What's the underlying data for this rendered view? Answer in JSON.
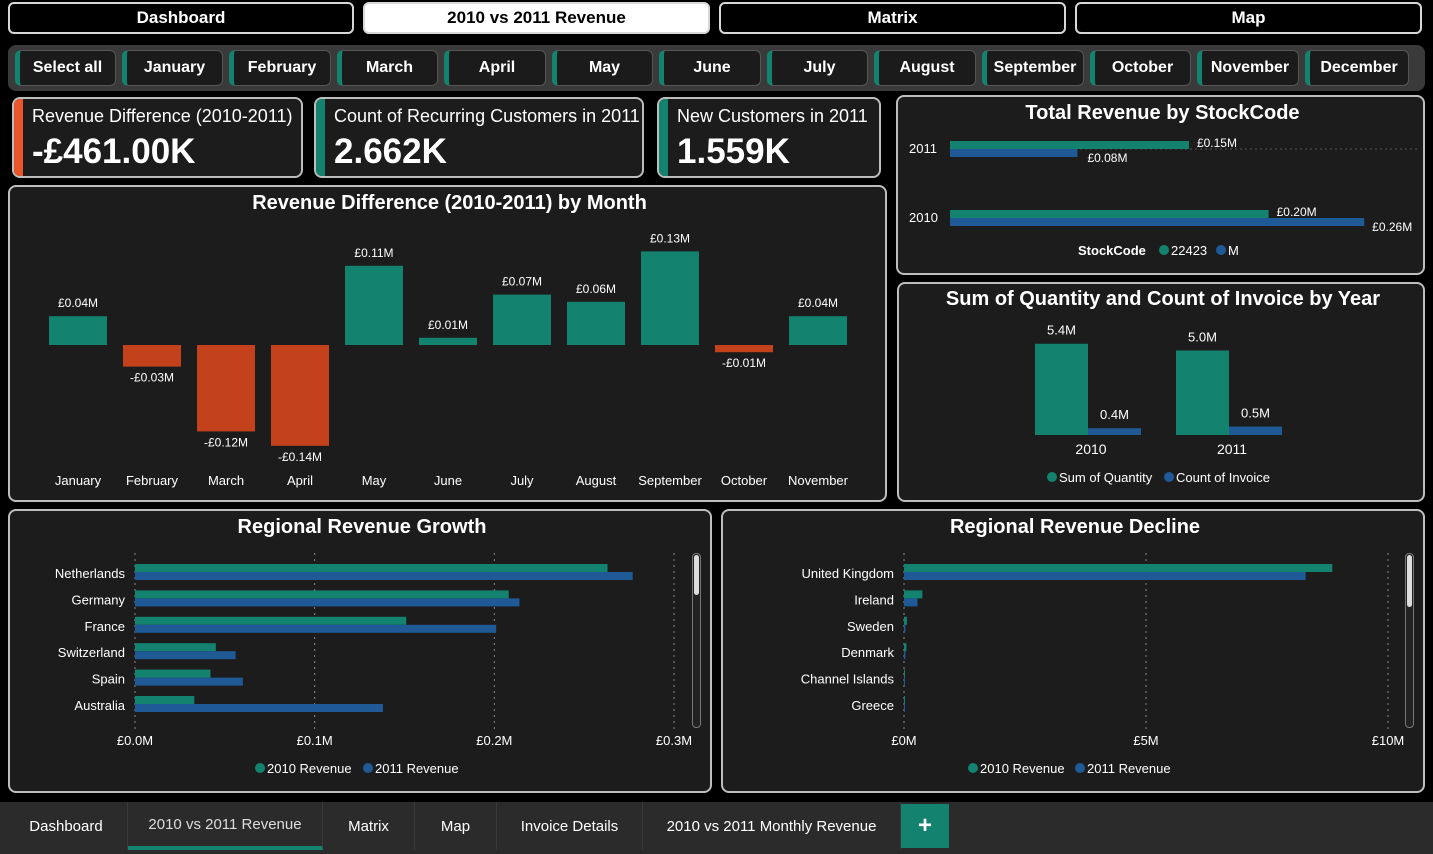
{
  "colors": {
    "teal": "#13836f",
    "blue": "#1f5a96",
    "orange": "#c4421b",
    "kpi_orange": "#e8562a"
  },
  "nav": [
    {
      "label": "Dashboard",
      "active": false
    },
    {
      "label": "2010 vs 2011 Revenue",
      "active": true
    },
    {
      "label": "Matrix",
      "active": false
    },
    {
      "label": "Map",
      "active": false
    }
  ],
  "months_filter": [
    "Select all",
    "January",
    "February",
    "March",
    "April",
    "May",
    "June",
    "July",
    "August",
    "September",
    "October",
    "November",
    "December"
  ],
  "kpis": [
    {
      "label": "Revenue Difference (2010-2011)",
      "value": "-£461.00K",
      "accent": "#e8562a"
    },
    {
      "label": "Count of Recurring Customers in 2011",
      "value": "2.662K",
      "accent": "#13836f"
    },
    {
      "label": "New Customers in 2011",
      "value": "1.559K",
      "accent": "#13836f"
    }
  ],
  "monthly_chart": {
    "title": "Revenue Difference (2010-2011) by Month",
    "chart_data": {
      "type": "bar",
      "categories": [
        "January",
        "February",
        "March",
        "April",
        "May",
        "June",
        "July",
        "August",
        "September",
        "October",
        "November"
      ],
      "values": [
        0.04,
        -0.03,
        -0.12,
        -0.14,
        0.11,
        0.01,
        0.07,
        0.06,
        0.13,
        -0.01,
        0.04
      ],
      "labels": [
        "£0.04M",
        "-£0.03M",
        "-£0.12M",
        "-£0.14M",
        "£0.11M",
        "£0.01M",
        "£0.07M",
        "£0.06M",
        "£0.13M",
        "-£0.01M",
        "£0.04M"
      ],
      "unit": "£M"
    }
  },
  "stockcode_chart": {
    "title": "Total Revenue by StockCode",
    "legend_title": "StockCode",
    "chart_data": {
      "type": "bar",
      "orientation": "horizontal",
      "categories": [
        "2011",
        "2010"
      ],
      "series": [
        {
          "name": "22423",
          "values": [
            0.15,
            0.2
          ],
          "labels": [
            "£0.15M",
            "£0.20M"
          ]
        },
        {
          "name": "M",
          "values": [
            0.08,
            0.26
          ],
          "labels": [
            "£0.08M",
            "£0.26M"
          ]
        }
      ],
      "unit": "£M"
    }
  },
  "quantity_chart": {
    "title": "Sum of Quantity and Count of Invoice by Year",
    "chart_data": {
      "type": "bar",
      "categories": [
        "2010",
        "2011"
      ],
      "series": [
        {
          "name": "Sum of Quantity",
          "values": [
            5.4,
            5.0
          ],
          "labels": [
            "5.4M",
            "5.0M"
          ]
        },
        {
          "name": "Count of Invoice",
          "values": [
            0.4,
            0.5
          ],
          "labels": [
            "0.4M",
            "0.5M"
          ]
        }
      ]
    }
  },
  "growth_chart": {
    "title": "Regional Revenue Growth",
    "chart_data": {
      "type": "bar",
      "orientation": "horizontal",
      "categories": [
        "Netherlands",
        "Germany",
        "France",
        "Switzerland",
        "Spain",
        "Australia"
      ],
      "series": [
        {
          "name": "2010 Revenue",
          "values": [
            0.263,
            0.208,
            0.151,
            0.045,
            0.042,
            0.033
          ]
        },
        {
          "name": "2011 Revenue",
          "values": [
            0.277,
            0.214,
            0.201,
            0.056,
            0.06,
            0.138
          ]
        }
      ],
      "xticks": [
        "£0.0M",
        "£0.1M",
        "£0.2M",
        "£0.3M"
      ],
      "xlim": [
        0,
        0.3
      ]
    }
  },
  "decline_chart": {
    "title": "Regional Revenue Decline",
    "chart_data": {
      "type": "bar",
      "orientation": "horizontal",
      "categories": [
        "United Kingdom",
        "Ireland",
        "Sweden",
        "Denmark",
        "Channel Islands",
        "Greece"
      ],
      "series": [
        {
          "name": "2010 Revenue",
          "values": [
            8.85,
            0.38,
            0.06,
            0.05,
            0.02,
            0.02
          ]
        },
        {
          "name": "2011 Revenue",
          "values": [
            8.3,
            0.28,
            0.03,
            0.03,
            0.02,
            0.01
          ]
        }
      ],
      "xticks": [
        "£0M",
        "£5M",
        "£10M"
      ],
      "xlim": [
        0,
        10
      ]
    }
  },
  "tabs": [
    {
      "label": "Dashboard",
      "active": false
    },
    {
      "label": "2010 vs 2011  Revenue",
      "active": true
    },
    {
      "label": "Matrix",
      "active": false
    },
    {
      "label": "Map",
      "active": false
    },
    {
      "label": "Invoice Details",
      "active": false
    },
    {
      "label": "2010 vs 2011 Monthly Revenue",
      "active": false
    }
  ],
  "add_tab_label": "+"
}
